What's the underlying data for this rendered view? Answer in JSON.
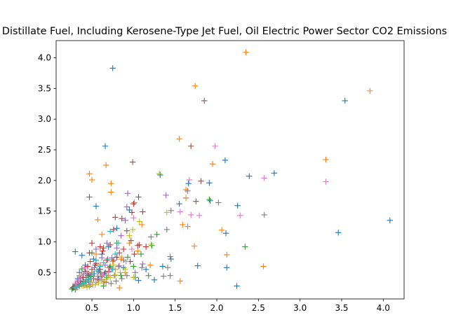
{
  "chart_data": {
    "type": "scatter",
    "title": "Distillate Fuel, Including Kerosene-Type Jet Fuel, Oil Electric Power Sector CO2 Emissions",
    "xlabel": "",
    "ylabel": "",
    "xlim": [
      0.07,
      4.25
    ],
    "ylim": [
      0.07,
      4.28
    ],
    "xticks": [
      "0.5",
      "1.0",
      "1.5",
      "2.0",
      "2.5",
      "3.0",
      "3.5",
      "4.0"
    ],
    "yticks": [
      "0.5",
      "1.0",
      "1.5",
      "2.0",
      "2.5",
      "3.0",
      "3.5",
      "4.0"
    ],
    "grid": false,
    "legend": "none",
    "marker": "plus",
    "series": [
      {
        "color": "#1f77b4",
        "points": [
          [
            0.75,
            3.83
          ],
          [
            0.66,
            2.56
          ],
          [
            1.32,
            2.09
          ],
          [
            3.54,
            3.3
          ],
          [
            4.08,
            1.35
          ],
          [
            3.46,
            1.15
          ],
          [
            2.1,
            2.33
          ],
          [
            2.39,
            2.07
          ],
          [
            2.69,
            2.12
          ],
          [
            2.25,
            1.59
          ],
          [
            2.11,
            1.14
          ],
          [
            2.24,
            0.28
          ],
          [
            2.12,
            0.58
          ],
          [
            1.77,
            0.61
          ],
          [
            1.91,
            1.96
          ],
          [
            1.92,
            1.67
          ],
          [
            1.66,
            1.95
          ],
          [
            1.06,
            1.73
          ],
          [
            1.06,
            0.37
          ],
          [
            0.47,
            1.73
          ],
          [
            0.55,
            1.58
          ],
          [
            0.3,
            0.84
          ],
          [
            0.38,
            0.78
          ],
          [
            0.42,
            0.62
          ],
          [
            0.35,
            0.5
          ],
          [
            0.33,
            0.4
          ],
          [
            0.3,
            0.3
          ],
          [
            0.28,
            0.25
          ],
          [
            0.45,
            0.45
          ],
          [
            0.52,
            0.72
          ],
          [
            0.6,
            0.55
          ],
          [
            0.65,
            0.48
          ],
          [
            0.7,
            0.92
          ],
          [
            0.8,
            1.22
          ],
          [
            0.88,
            0.58
          ],
          [
            0.95,
            1.52
          ],
          [
            1.02,
            0.42
          ],
          [
            1.15,
            0.55
          ],
          [
            1.25,
            0.38
          ],
          [
            1.35,
            0.6
          ],
          [
            1.45,
            0.72
          ],
          [
            1.55,
            1.62
          ],
          [
            0.4,
            0.35
          ],
          [
            0.48,
            0.3
          ],
          [
            0.58,
            0.4
          ],
          [
            0.62,
            0.8
          ]
        ]
      },
      {
        "color": "#ff7f0e",
        "points": [
          [
            2.35,
            4.09
          ],
          [
            1.74,
            3.54
          ],
          [
            3.84,
            3.46
          ],
          [
            1.55,
            2.68
          ],
          [
            3.31,
            2.34
          ],
          [
            1.95,
            2.27
          ],
          [
            0.67,
            2.25
          ],
          [
            0.47,
            2.11
          ],
          [
            0.5,
            2.01
          ],
          [
            0.73,
            1.95
          ],
          [
            0.73,
            1.81
          ],
          [
            1.63,
            1.85
          ],
          [
            1.59,
            1.28
          ],
          [
            1.65,
            1.25
          ],
          [
            2.06,
            1.19
          ],
          [
            2.12,
            0.79
          ],
          [
            2.56,
            0.6
          ],
          [
            1.73,
            0.93
          ],
          [
            1.56,
            0.36
          ],
          [
            0.83,
            0.25
          ],
          [
            1.01,
            1.64
          ],
          [
            1.1,
            1.28
          ],
          [
            0.95,
            0.98
          ],
          [
            0.85,
            0.72
          ],
          [
            0.78,
            0.55
          ],
          [
            0.7,
            0.45
          ],
          [
            0.6,
            0.62
          ],
          [
            0.55,
            0.8
          ],
          [
            0.5,
            0.5
          ],
          [
            0.45,
            0.38
          ],
          [
            0.4,
            0.28
          ],
          [
            0.35,
            0.45
          ],
          [
            0.3,
            0.32
          ],
          [
            0.62,
            1.12
          ],
          [
            0.57,
            1.36
          ],
          [
            0.65,
            0.35
          ],
          [
            0.75,
            0.68
          ],
          [
            0.9,
            0.5
          ],
          [
            1.05,
            0.85
          ],
          [
            1.2,
            0.62
          ]
        ]
      },
      {
        "color": "#2ca02c",
        "points": [
          [
            2.34,
            0.92
          ],
          [
            1.91,
            1.69
          ],
          [
            1.28,
            1.12
          ],
          [
            1.22,
            0.94
          ],
          [
            1.09,
            0.8
          ],
          [
            1.18,
            0.45
          ],
          [
            0.93,
            0.75
          ],
          [
            0.8,
            0.98
          ],
          [
            0.72,
            0.6
          ],
          [
            0.64,
            0.28
          ],
          [
            0.6,
            0.5
          ],
          [
            0.55,
            0.7
          ],
          [
            0.48,
            0.44
          ],
          [
            0.42,
            0.34
          ],
          [
            0.38,
            0.56
          ],
          [
            0.34,
            0.3
          ],
          [
            0.26,
            0.23
          ],
          [
            0.3,
            0.22
          ],
          [
            0.5,
            0.82
          ],
          [
            0.85,
            0.45
          ],
          [
            0.68,
            0.42
          ],
          [
            1.0,
            0.6
          ]
        ]
      },
      {
        "color": "#d62728",
        "points": [
          [
            1.0,
            1.62
          ],
          [
            0.98,
            1.48
          ],
          [
            1.07,
            0.95
          ],
          [
            1.15,
            0.92
          ],
          [
            1.01,
            0.8
          ],
          [
            0.96,
            0.68
          ],
          [
            0.88,
            0.88
          ],
          [
            0.8,
            0.75
          ],
          [
            0.76,
            1.2
          ],
          [
            0.72,
            0.95
          ],
          [
            0.68,
            0.7
          ],
          [
            0.63,
            0.85
          ],
          [
            0.59,
            0.55
          ],
          [
            0.55,
            0.65
          ],
          [
            0.5,
            0.98
          ],
          [
            0.47,
            0.82
          ],
          [
            0.45,
            0.6
          ],
          [
            0.42,
            0.52
          ],
          [
            0.39,
            0.42
          ],
          [
            0.36,
            0.36
          ],
          [
            0.33,
            0.3
          ],
          [
            0.3,
            0.27
          ],
          [
            0.27,
            0.25
          ],
          [
            0.52,
            0.4
          ],
          [
            0.6,
            0.92
          ],
          [
            0.7,
            0.52
          ]
        ]
      },
      {
        "color": "#9467bd",
        "points": [
          [
            1.39,
            1.76
          ],
          [
            0.93,
            1.79
          ],
          [
            0.92,
            1.57
          ],
          [
            0.9,
            1.35
          ],
          [
            0.85,
            1.1
          ],
          [
            0.8,
            0.9
          ],
          [
            0.74,
            0.74
          ],
          [
            0.66,
            0.62
          ],
          [
            0.62,
            0.74
          ],
          [
            0.58,
            0.52
          ],
          [
            0.53,
            0.58
          ],
          [
            0.49,
            0.46
          ],
          [
            0.46,
            0.36
          ],
          [
            0.43,
            0.3
          ],
          [
            0.4,
            0.48
          ],
          [
            0.36,
            0.4
          ],
          [
            0.33,
            0.36
          ],
          [
            0.3,
            0.29
          ],
          [
            0.55,
            0.88
          ],
          [
            0.68,
            0.98
          ],
          [
            0.77,
            0.45
          ],
          [
            1.11,
            0.64
          ]
        ]
      },
      {
        "color": "#8c564b",
        "points": [
          [
            1.85,
            3.3
          ],
          [
            1.69,
            2.56
          ],
          [
            0.99,
            2.3
          ],
          [
            1.81,
            1.99
          ],
          [
            1.75,
            1.66
          ],
          [
            1.11,
            1.49
          ],
          [
            0.78,
            1.4
          ],
          [
            0.86,
            1.38
          ],
          [
            0.92,
            1.18
          ],
          [
            0.97,
            1.02
          ],
          [
            1.05,
            0.94
          ],
          [
            0.83,
            0.82
          ],
          [
            0.76,
            0.7
          ],
          [
            0.71,
            0.58
          ],
          [
            0.66,
            0.5
          ],
          [
            0.61,
            0.44
          ],
          [
            0.57,
            0.38
          ],
          [
            0.54,
            0.62
          ],
          [
            0.5,
            0.55
          ],
          [
            0.46,
            0.48
          ],
          [
            0.43,
            0.42
          ],
          [
            0.4,
            0.36
          ],
          [
            0.37,
            0.33
          ],
          [
            0.34,
            0.31
          ],
          [
            0.31,
            0.28
          ],
          [
            0.28,
            0.26
          ],
          [
            0.48,
            0.68
          ],
          [
            0.64,
            0.9
          ]
        ]
      },
      {
        "color": "#e377c2",
        "points": [
          [
            1.98,
            2.56
          ],
          [
            1.67,
            2.01
          ],
          [
            2.57,
            2.04
          ],
          [
            1.56,
            1.49
          ],
          [
            1.69,
            1.44
          ],
          [
            1.79,
            1.43
          ],
          [
            2.28,
            1.43
          ],
          [
            1.0,
            1.39
          ],
          [
            1.63,
            1.72
          ],
          [
            3.31,
            1.98
          ],
          [
            0.98,
            0.88
          ],
          [
            0.91,
            0.68
          ],
          [
            0.83,
            0.61
          ],
          [
            0.74,
            0.56
          ],
          [
            0.7,
            0.5
          ],
          [
            0.63,
            0.46
          ],
          [
            0.59,
            0.4
          ],
          [
            0.55,
            0.34
          ],
          [
            0.51,
            0.3
          ],
          [
            0.47,
            0.27
          ],
          [
            0.44,
            0.5
          ],
          [
            0.41,
            0.58
          ],
          [
            0.37,
            0.45
          ],
          [
            0.34,
            0.38
          ],
          [
            0.31,
            0.32
          ]
        ]
      },
      {
        "color": "#7f7f7f",
        "points": [
          [
            2.02,
            1.64
          ],
          [
            1.65,
            1.83
          ],
          [
            1.45,
            1.51
          ],
          [
            1.4,
            1.2
          ],
          [
            1.44,
            0.76
          ],
          [
            1.41,
            0.58
          ],
          [
            1.36,
            0.44
          ],
          [
            1.44,
            0.45
          ],
          [
            2.57,
            1.44
          ],
          [
            1.21,
            1.08
          ],
          [
            1.1,
            0.58
          ],
          [
            1.02,
            0.5
          ],
          [
            0.92,
            0.45
          ],
          [
            0.86,
            0.4
          ],
          [
            0.79,
            0.36
          ],
          [
            0.73,
            0.32
          ],
          [
            0.67,
            0.34
          ],
          [
            0.62,
            0.38
          ],
          [
            0.57,
            0.44
          ],
          [
            0.53,
            0.48
          ],
          [
            0.49,
            0.4
          ],
          [
            0.46,
            0.34
          ],
          [
            0.43,
            0.38
          ],
          [
            0.39,
            0.32
          ],
          [
            0.35,
            0.28
          ],
          [
            0.32,
            0.26
          ],
          [
            0.82,
            0.6
          ],
          [
            0.88,
            0.7
          ]
        ]
      },
      {
        "color": "#bcbd22",
        "points": [
          [
            1.31,
            2.11
          ],
          [
            1.63,
            1.71
          ],
          [
            1.4,
            1.48
          ],
          [
            1.07,
            1.33
          ],
          [
            0.99,
            1.2
          ],
          [
            0.95,
            1.1
          ],
          [
            1.21,
            0.96
          ],
          [
            1.0,
            0.42
          ],
          [
            0.9,
            0.55
          ],
          [
            0.84,
            0.5
          ],
          [
            0.78,
            0.46
          ],
          [
            0.72,
            0.42
          ],
          [
            0.67,
            0.39
          ],
          [
            0.62,
            0.36
          ],
          [
            0.58,
            0.33
          ],
          [
            0.54,
            0.3
          ],
          [
            0.5,
            0.34
          ],
          [
            0.47,
            0.28
          ],
          [
            0.44,
            0.26
          ],
          [
            0.41,
            0.31
          ],
          [
            0.38,
            0.29
          ],
          [
            0.35,
            0.27
          ],
          [
            0.32,
            0.25
          ],
          [
            0.86,
            0.75
          ],
          [
            0.76,
            0.62
          ]
        ]
      },
      {
        "color": "#17becf",
        "points": [
          [
            0.72,
            1.17
          ],
          [
            0.82,
            0.98
          ],
          [
            0.78,
            0.8
          ],
          [
            0.69,
            0.72
          ],
          [
            0.64,
            0.66
          ],
          [
            0.6,
            0.6
          ],
          [
            0.56,
            0.54
          ],
          [
            0.52,
            0.48
          ],
          [
            0.49,
            0.43
          ],
          [
            0.46,
            0.39
          ],
          [
            0.43,
            0.36
          ],
          [
            0.4,
            0.33
          ],
          [
            0.37,
            0.31
          ],
          [
            0.35,
            0.29
          ],
          [
            0.32,
            0.27
          ],
          [
            0.3,
            0.26
          ],
          [
            0.55,
            0.7
          ],
          [
            0.75,
            0.55
          ]
        ]
      }
    ]
  }
}
